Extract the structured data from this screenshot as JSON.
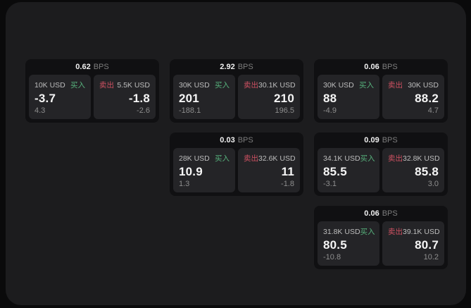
{
  "labels": {
    "buy": "买入",
    "sell": "卖出",
    "bps_unit": "BPS"
  },
  "colors": {
    "buy_green": "#57b27c",
    "sell_red": "#cf5162",
    "page_bg": "#0a0a0b",
    "panel_bg": "#1c1c1e",
    "card_bg": "#101012",
    "tile_bg": "#242427"
  },
  "cards": [
    {
      "bps": "0.62",
      "buy": {
        "amount": "10K USD",
        "price": "-3.7",
        "delta": "4.3"
      },
      "sell": {
        "amount": "5.5K USD",
        "price": "-1.8",
        "delta": "-2.6"
      }
    },
    {
      "bps": "2.92",
      "buy": {
        "amount": "30K USD",
        "price": "201",
        "delta": "-188.1"
      },
      "sell": {
        "amount": "30.1K USD",
        "price": "210",
        "delta": "196.5"
      }
    },
    {
      "bps": "0.06",
      "buy": {
        "amount": "30K USD",
        "price": "88",
        "delta": "-4.9"
      },
      "sell": {
        "amount": "30K USD",
        "price": "88.2",
        "delta": "4.7"
      }
    },
    {
      "bps": "0.03",
      "buy": {
        "amount": "28K USD",
        "price": "10.9",
        "delta": "1.3"
      },
      "sell": {
        "amount": "32.6K USD",
        "price": "11",
        "delta": "-1.8"
      }
    },
    {
      "bps": "0.09",
      "buy": {
        "amount": "34.1K USD",
        "price": "85.5",
        "delta": "-3.1"
      },
      "sell": {
        "amount": "32.8K USD",
        "price": "85.8",
        "delta": "3.0"
      }
    },
    {
      "bps": "0.06",
      "buy": {
        "amount": "31.8K USD",
        "price": "80.5",
        "delta": "-10.8"
      },
      "sell": {
        "amount": "39.1K USD",
        "price": "80.7",
        "delta": "10.2"
      }
    }
  ]
}
